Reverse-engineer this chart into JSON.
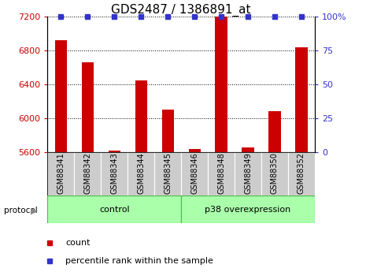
{
  "title": "GDS2487 / 1386891_at",
  "samples": [
    "GSM88341",
    "GSM88342",
    "GSM88343",
    "GSM88344",
    "GSM88345",
    "GSM88346",
    "GSM88348",
    "GSM88349",
    "GSM88350",
    "GSM88352"
  ],
  "counts": [
    6920,
    6660,
    5625,
    6450,
    6100,
    5640,
    7200,
    5660,
    6080,
    6840
  ],
  "percentiles": [
    100,
    100,
    100,
    100,
    100,
    100,
    100,
    100,
    100,
    100
  ],
  "ylim_left": [
    5600,
    7200
  ],
  "ylim_right": [
    0,
    100
  ],
  "yticks_left": [
    5600,
    6000,
    6400,
    6800,
    7200
  ],
  "yticks_right": [
    0,
    25,
    50,
    75,
    100
  ],
  "bar_color": "#cc0000",
  "dot_color": "#3333cc",
  "tick_label_color_left": "#cc0000",
  "tick_label_color_right": "#3333cc",
  "group1_label": "control",
  "group2_label": "p38 overexpression",
  "group1_count": 5,
  "group2_count": 5,
  "protocol_label": "protocol",
  "legend_count_label": "count",
  "legend_pct_label": "percentile rank within the sample",
  "group_bg_color": "#aaffaa",
  "group_border_color": "#44bb44",
  "xlabel_bg_color": "#cccccc",
  "title_fontsize": 11,
  "axis_fontsize": 8,
  "tick_fontsize": 7,
  "label_fontsize": 8
}
